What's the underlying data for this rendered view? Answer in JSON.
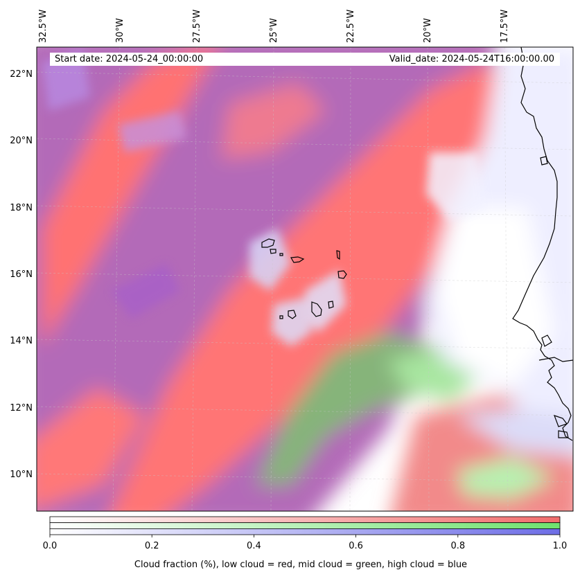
{
  "map": {
    "start_date_label": "Start date: 2024-05-24_00:00:00",
    "valid_date_label": "Valid_date: 2024-05-24T16:00:00.00",
    "longitude_labels": [
      "32.5°W",
      "30°W",
      "27.5°W",
      "25°W",
      "22.5°W",
      "20°W",
      "17.5°W"
    ],
    "latitude_labels": [
      "22°N",
      "20°N",
      "18°N",
      "16°N",
      "14°N",
      "12°N",
      "10°N"
    ],
    "colors": {
      "low_cloud": "#ff6e6e",
      "mid_cloud": "#6ee66e",
      "high_cloud": "#6e6ef0",
      "clear": "#ffffff"
    }
  },
  "colorbar": {
    "ticks": [
      "0.0",
      "0.2",
      "0.4",
      "0.6",
      "0.8",
      "1.0"
    ],
    "caption": "Cloud fraction (%), low cloud = red, mid cloud = green, high cloud = blue"
  }
}
